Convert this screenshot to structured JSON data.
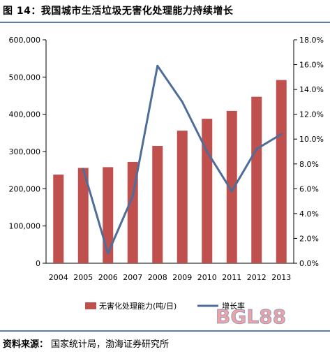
{
  "figure_title": "图 14：我国城市生活垃圾无害化处理能力持续增长",
  "source_label": "资料来源：",
  "source_text": "国家统计局，渤海证券研究所",
  "watermark_text": "BGL88",
  "colors": {
    "bar": "#c0504d",
    "line": "#4f6d99",
    "rule": "#5a7fae"
  },
  "chart_data": {
    "type": "bar",
    "categories": [
      "2004",
      "2005",
      "2006",
      "2007",
      "2008",
      "2009",
      "2010",
      "2011",
      "2012",
      "2013"
    ],
    "series": [
      {
        "name": "无害化处理能力(吨/日)",
        "type": "bar",
        "axis": "left",
        "values": [
          238000,
          256000,
          258000,
          272000,
          315000,
          356000,
          388000,
          409000,
          447000,
          492000
        ]
      },
      {
        "name": "增长率",
        "type": "line",
        "axis": "right",
        "values": [
          null,
          7.6,
          0.8,
          5.4,
          15.9,
          13.0,
          9.0,
          5.8,
          9.2,
          10.4
        ]
      }
    ],
    "y_left": {
      "min": 0,
      "max": 600000,
      "ticks": [
        "0",
        "100,000",
        "200,000",
        "300,000",
        "400,000",
        "500,000",
        "600,000"
      ]
    },
    "y_right": {
      "min": 0,
      "max": 18,
      "ticks": [
        "0.0%",
        "2.0%",
        "4.0%",
        "6.0%",
        "8.0%",
        "10.0%",
        "12.0%",
        "14.0%",
        "16.0%",
        "18.0%"
      ]
    },
    "legend_position": "bottom",
    "grid": false
  }
}
